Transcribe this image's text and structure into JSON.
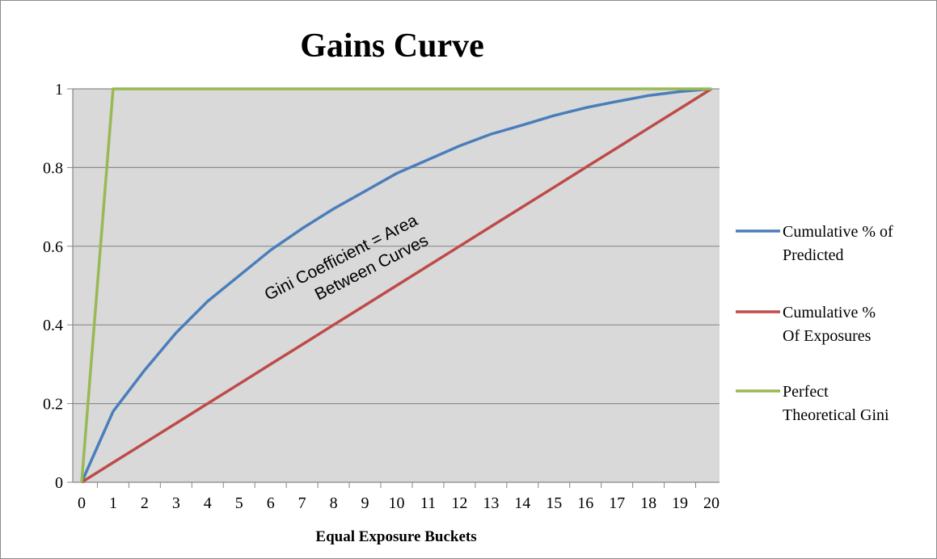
{
  "chart_data": {
    "type": "line",
    "title": "Gains Curve",
    "xlabel": "Equal Exposure Buckets",
    "ylabel": "",
    "x": [
      0,
      1,
      2,
      3,
      4,
      5,
      6,
      7,
      8,
      9,
      10,
      11,
      12,
      13,
      14,
      15,
      16,
      17,
      18,
      19,
      20
    ],
    "x_tick_labels": [
      "0",
      "1",
      "2",
      "3",
      "4",
      "5",
      "6",
      "7",
      "8",
      "9",
      "10",
      "11",
      "12",
      "13",
      "14",
      "15",
      "16",
      "17",
      "18",
      "19",
      "20"
    ],
    "y_tick_labels": [
      "0",
      "0.2",
      "0.4",
      "0.6",
      "0.8",
      "1"
    ],
    "ylim": [
      0,
      1
    ],
    "grid": true,
    "legend_position": "right",
    "series": [
      {
        "name": "Cumulative % of Predicted",
        "name_lines": [
          "Cumulative % of",
          "Predicted"
        ],
        "color": "#4a7ebb",
        "values": [
          0,
          0.18,
          0.285,
          0.38,
          0.46,
          0.525,
          0.59,
          0.645,
          0.695,
          0.74,
          0.785,
          0.82,
          0.855,
          0.885,
          0.908,
          0.932,
          0.952,
          0.968,
          0.983,
          0.993,
          1.0
        ]
      },
      {
        "name": "Cumulative % Of Exposures",
        "name_lines": [
          "Cumulative %",
          "Of Exposures"
        ],
        "color": "#be4b48",
        "values": [
          0,
          0.05,
          0.1,
          0.15,
          0.2,
          0.25,
          0.3,
          0.35,
          0.4,
          0.45,
          0.5,
          0.55,
          0.6,
          0.65,
          0.7,
          0.75,
          0.8,
          0.85,
          0.9,
          0.95,
          1.0
        ]
      },
      {
        "name": "Perfect Theoretical Gini",
        "name_lines": [
          "Perfect",
          "Theoretical Gini"
        ],
        "color": "#98b954",
        "values": [
          0,
          1,
          1,
          1,
          1,
          1,
          1,
          1,
          1,
          1,
          1,
          1,
          1,
          1,
          1,
          1,
          1,
          1,
          1,
          1,
          1
        ]
      }
    ],
    "annotation": {
      "lines": [
        "Gini Coefficient = Area",
        "Between Curves"
      ],
      "anchor_x": 9.6,
      "anchor_y": 0.6
    },
    "colors": {
      "plot_background": "#d9d9d9",
      "gridline": "#8c8c8c",
      "axis": "#868686"
    }
  }
}
